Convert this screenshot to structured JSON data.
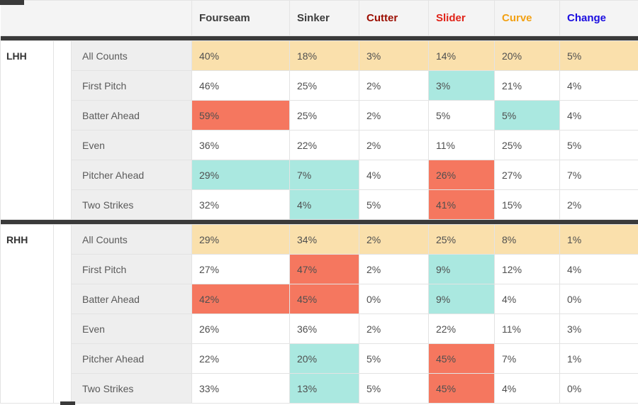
{
  "cell_colors": {
    "all_counts": "#fae0ac",
    "high": "#f5775f",
    "low": "#aae8e0",
    "divider_bar": "#3a3a3a",
    "header_background": "#f4f4f4",
    "row_label_background": "#eeeeee"
  },
  "chart_data": {
    "type": "table",
    "columns": [
      {
        "label": "Fourseam",
        "color": "#3d3d3d"
      },
      {
        "label": "Sinker",
        "color": "#3d3d3d"
      },
      {
        "label": "Cutter",
        "color": "#9b0d00"
      },
      {
        "label": "Slider",
        "color": "#e02318"
      },
      {
        "label": "Curve",
        "color": "#f2a114"
      },
      {
        "label": "Change",
        "color": "#1a0de0"
      }
    ],
    "row_labels": [
      "All Counts",
      "First Pitch",
      "Batter Ahead",
      "Even",
      "Pitcher Ahead",
      "Two Strikes"
    ],
    "sections": [
      {
        "group": "LHH",
        "rows": [
          {
            "label": "All Counts",
            "cells": [
              {
                "v": "40%",
                "bg": "all"
              },
              {
                "v": "18%",
                "bg": "all"
              },
              {
                "v": "3%",
                "bg": "all"
              },
              {
                "v": "14%",
                "bg": "all"
              },
              {
                "v": "20%",
                "bg": "all"
              },
              {
                "v": "5%",
                "bg": "all"
              }
            ]
          },
          {
            "label": "First Pitch",
            "cells": [
              {
                "v": "46%",
                "bg": ""
              },
              {
                "v": "25%",
                "bg": ""
              },
              {
                "v": "2%",
                "bg": ""
              },
              {
                "v": "3%",
                "bg": "low"
              },
              {
                "v": "21%",
                "bg": ""
              },
              {
                "v": "4%",
                "bg": ""
              }
            ]
          },
          {
            "label": "Batter Ahead",
            "cells": [
              {
                "v": "59%",
                "bg": "high"
              },
              {
                "v": "25%",
                "bg": ""
              },
              {
                "v": "2%",
                "bg": ""
              },
              {
                "v": "5%",
                "bg": ""
              },
              {
                "v": "5%",
                "bg": "low"
              },
              {
                "v": "4%",
                "bg": ""
              }
            ]
          },
          {
            "label": "Even",
            "cells": [
              {
                "v": "36%",
                "bg": ""
              },
              {
                "v": "22%",
                "bg": ""
              },
              {
                "v": "2%",
                "bg": ""
              },
              {
                "v": "11%",
                "bg": ""
              },
              {
                "v": "25%",
                "bg": ""
              },
              {
                "v": "5%",
                "bg": ""
              }
            ]
          },
          {
            "label": "Pitcher Ahead",
            "cells": [
              {
                "v": "29%",
                "bg": "low"
              },
              {
                "v": "7%",
                "bg": "low"
              },
              {
                "v": "4%",
                "bg": ""
              },
              {
                "v": "26%",
                "bg": "high"
              },
              {
                "v": "27%",
                "bg": ""
              },
              {
                "v": "7%",
                "bg": ""
              }
            ]
          },
          {
            "label": "Two Strikes",
            "cells": [
              {
                "v": "32%",
                "bg": ""
              },
              {
                "v": "4%",
                "bg": "low"
              },
              {
                "v": "5%",
                "bg": ""
              },
              {
                "v": "41%",
                "bg": "high"
              },
              {
                "v": "15%",
                "bg": ""
              },
              {
                "v": "2%",
                "bg": ""
              }
            ]
          }
        ]
      },
      {
        "group": "RHH",
        "rows": [
          {
            "label": "All Counts",
            "cells": [
              {
                "v": "29%",
                "bg": "all"
              },
              {
                "v": "34%",
                "bg": "all"
              },
              {
                "v": "2%",
                "bg": "all"
              },
              {
                "v": "25%",
                "bg": "all"
              },
              {
                "v": "8%",
                "bg": "all"
              },
              {
                "v": "1%",
                "bg": "all"
              }
            ]
          },
          {
            "label": "First Pitch",
            "cells": [
              {
                "v": "27%",
                "bg": ""
              },
              {
                "v": "47%",
                "bg": "high"
              },
              {
                "v": "2%",
                "bg": ""
              },
              {
                "v": "9%",
                "bg": "low"
              },
              {
                "v": "12%",
                "bg": ""
              },
              {
                "v": "4%",
                "bg": ""
              }
            ]
          },
          {
            "label": "Batter Ahead",
            "cells": [
              {
                "v": "42%",
                "bg": "high"
              },
              {
                "v": "45%",
                "bg": "high"
              },
              {
                "v": "0%",
                "bg": ""
              },
              {
                "v": "9%",
                "bg": "low"
              },
              {
                "v": "4%",
                "bg": ""
              },
              {
                "v": "0%",
                "bg": ""
              }
            ]
          },
          {
            "label": "Even",
            "cells": [
              {
                "v": "26%",
                "bg": ""
              },
              {
                "v": "36%",
                "bg": ""
              },
              {
                "v": "2%",
                "bg": ""
              },
              {
                "v": "22%",
                "bg": ""
              },
              {
                "v": "11%",
                "bg": ""
              },
              {
                "v": "3%",
                "bg": ""
              }
            ]
          },
          {
            "label": "Pitcher Ahead",
            "cells": [
              {
                "v": "22%",
                "bg": ""
              },
              {
                "v": "20%",
                "bg": "low"
              },
              {
                "v": "5%",
                "bg": ""
              },
              {
                "v": "45%",
                "bg": "high"
              },
              {
                "v": "7%",
                "bg": ""
              },
              {
                "v": "1%",
                "bg": ""
              }
            ]
          },
          {
            "label": "Two Strikes",
            "cells": [
              {
                "v": "33%",
                "bg": ""
              },
              {
                "v": "13%",
                "bg": "low"
              },
              {
                "v": "5%",
                "bg": ""
              },
              {
                "v": "45%",
                "bg": "high"
              },
              {
                "v": "4%",
                "bg": ""
              },
              {
                "v": "0%",
                "bg": ""
              }
            ]
          }
        ]
      }
    ]
  }
}
